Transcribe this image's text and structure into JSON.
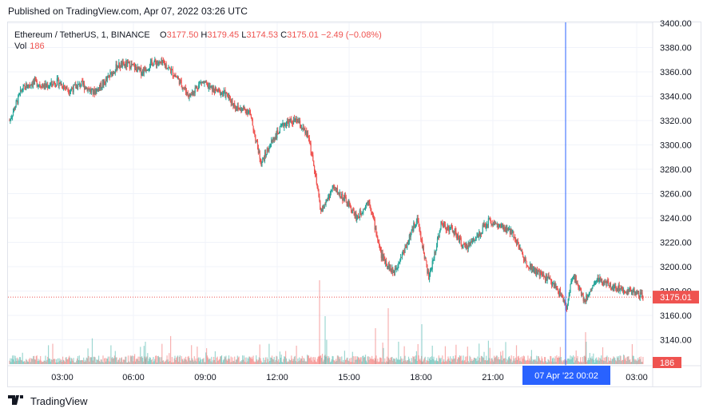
{
  "published": "Published on TradingView.com, Apr 07, 2022 03:26 UTC",
  "legend": {
    "symbol": "Ethereum / TetherUS, 1, BINANCE",
    "o_label": "O",
    "o_value": "3177.50",
    "h_label": "H",
    "h_value": "3179.45",
    "l_label": "L",
    "l_value": "3174.53",
    "c_label": "C",
    "c_value": "3175.01",
    "change": "−2.49 (−0.08%)",
    "vol_label": "Vol",
    "vol_value": "186"
  },
  "footer": {
    "brand": "TradingView",
    "logo_icon": "tradingview-logo-icon"
  },
  "colors": {
    "up": "#26a69a",
    "down": "#ef5350",
    "crosshair": "#2962ff",
    "grid": "#f0f3fa"
  },
  "chart_data": {
    "type": "candlestick",
    "ylim": [
      3130,
      3400
    ],
    "y_ticks": [
      "3400.00",
      "3380.00",
      "3360.00",
      "3340.00",
      "3320.00",
      "3300.00",
      "3280.00",
      "3260.00",
      "3240.00",
      "3220.00",
      "3200.00",
      "3180.00",
      "3160.00",
      "3140.00"
    ],
    "x_ticks": [
      "03:00",
      "06:00",
      "09:00",
      "12:00",
      "15:00",
      "18:00",
      "21:00",
      "03:00"
    ],
    "crosshair_label": "07 Apr '22   00:02",
    "last_price_label": "3175.01",
    "volume_label": "186",
    "close_path": [
      [
        "01:00",
        3320
      ],
      [
        "01:30",
        3345
      ],
      [
        "02:00",
        3352
      ],
      [
        "02:30",
        3348
      ],
      [
        "03:00",
        3352
      ],
      [
        "03:30",
        3345
      ],
      [
        "04:00",
        3350
      ],
      [
        "04:30",
        3343
      ],
      [
        "05:00",
        3352
      ],
      [
        "05:30",
        3365
      ],
      [
        "06:00",
        3366
      ],
      [
        "06:30",
        3360
      ],
      [
        "07:00",
        3368
      ],
      [
        "07:30",
        3366
      ],
      [
        "08:00",
        3355
      ],
      [
        "08:30",
        3340
      ],
      [
        "09:00",
        3352
      ],
      [
        "09:30",
        3345
      ],
      [
        "10:00",
        3342
      ],
      [
        "10:30",
        3330
      ],
      [
        "11:00",
        3328
      ],
      [
        "11:30",
        3285
      ],
      [
        "12:00",
        3305
      ],
      [
        "12:30",
        3318
      ],
      [
        "13:00",
        3320
      ],
      [
        "13:30",
        3305
      ],
      [
        "14:00",
        3245
      ],
      [
        "14:30",
        3265
      ],
      [
        "15:00",
        3255
      ],
      [
        "15:30",
        3240
      ],
      [
        "16:00",
        3255
      ],
      [
        "16:30",
        3210
      ],
      [
        "17:00",
        3195
      ],
      [
        "17:30",
        3215
      ],
      [
        "18:00",
        3240
      ],
      [
        "18:30",
        3190
      ],
      [
        "19:00",
        3235
      ],
      [
        "19:30",
        3230
      ],
      [
        "20:00",
        3215
      ],
      [
        "20:30",
        3225
      ],
      [
        "21:00",
        3238
      ],
      [
        "21:30",
        3232
      ],
      [
        "22:00",
        3228
      ],
      [
        "22:30",
        3205
      ],
      [
        "23:00",
        3195
      ],
      [
        "23:30",
        3190
      ],
      [
        "00:00",
        3178
      ],
      [
        "00:15",
        3165
      ],
      [
        "00:30",
        3195
      ],
      [
        "01:00",
        3172
      ],
      [
        "01:30",
        3190
      ],
      [
        "02:00",
        3185
      ],
      [
        "02:30",
        3182
      ],
      [
        "03:00",
        3180
      ],
      [
        "03:26",
        3175.01
      ]
    ]
  }
}
